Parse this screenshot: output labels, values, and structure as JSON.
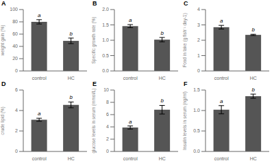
{
  "chart_data": [
    {
      "type": "bar",
      "title": "A",
      "ylabel": "weight gain (%)",
      "categories": [
        "control",
        "HC"
      ],
      "values": [
        80,
        49
      ],
      "errors": [
        3.5,
        4.5
      ],
      "annotations": [
        "a",
        "b"
      ],
      "color": "#555555",
      "ylim": [
        0,
        100
      ],
      "yticks": [
        0,
        20,
        40,
        60,
        80,
        100
      ],
      "grid": false
    },
    {
      "type": "bar",
      "title": "B",
      "ylabel": "Specific growth rate (%)",
      "categories": [
        "control",
        "HC"
      ],
      "values": [
        1.46,
        1.02
      ],
      "errors": [
        0.05,
        0.07
      ],
      "annotations": [
        "a",
        "b"
      ],
      "color": "#555555",
      "ylim": [
        0.0,
        2.0
      ],
      "yticks": [
        {
          "value": 0,
          "label": "0.0"
        },
        0.5,
        {
          "value": 1,
          "label": "1.0"
        },
        1.5,
        {
          "value": 2,
          "label": "2.0"
        }
      ],
      "grid": false
    },
    {
      "type": "bar",
      "title": "C",
      "ylabel": "Food in take (g fish⁻¹ day-1)",
      "categories": [
        "control",
        "HC"
      ],
      "values": [
        2.85,
        2.35
      ],
      "errors": [
        0.12,
        0.04
      ],
      "annotations": [
        "a",
        "b"
      ],
      "color": "#555555",
      "ylim": [
        0,
        4
      ],
      "yticks": [
        0,
        1,
        2,
        3,
        4
      ],
      "grid": false
    },
    {
      "type": "bar",
      "title": "D",
      "ylabel": "crude lipid (%)",
      "categories": [
        "control",
        "HC"
      ],
      "values": [
        3.1,
        4.55
      ],
      "errors": [
        0.15,
        0.28
      ],
      "annotations": [
        "a",
        "b"
      ],
      "color": "#555555",
      "ylim": [
        0,
        6
      ],
      "yticks": [
        0,
        2,
        4,
        6
      ],
      "grid": false
    },
    {
      "type": "bar",
      "title": "E",
      "ylabel": "glucose levels in serum (mmol/L)",
      "categories": [
        "control",
        "HC"
      ],
      "values": [
        3.9,
        6.8
      ],
      "errors": [
        0.25,
        0.7
      ],
      "annotations": [
        "a",
        "b"
      ],
      "color": "#555555",
      "ylim": [
        0,
        10
      ],
      "yticks": [
        0,
        2,
        4,
        6,
        8,
        10
      ],
      "grid": false
    },
    {
      "type": "bar",
      "title": "F",
      "ylabel": "Insulin levels in serum (ng/ml)",
      "categories": [
        "control",
        "HC"
      ],
      "values": [
        1.02,
        1.35
      ],
      "errors": [
        0.1,
        0.05
      ],
      "annotations": [
        "a",
        "b"
      ],
      "color": "#555555",
      "ylim": [
        {
          "value": 0,
          "label": "0.0"
        },
        1.5
      ],
      "yticks": [
        {
          "value": 0,
          "label": "0.0"
        },
        0.5,
        {
          "value": 1,
          "label": "1.0"
        },
        1.5
      ],
      "grid": false
    }
  ]
}
